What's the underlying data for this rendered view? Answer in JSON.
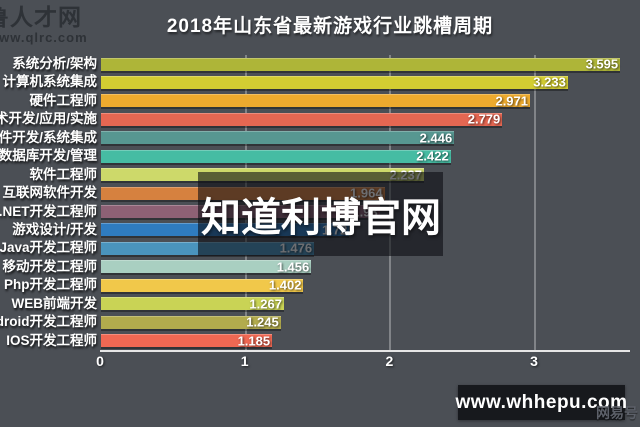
{
  "page": {
    "background": "#4b4f55"
  },
  "logo": {
    "line1": "鲁人才网",
    "line2": "www.qlrc.com"
  },
  "header": {
    "title": "2018年山东省最新游戏行业跳槽周期"
  },
  "watermark": {
    "text": "知道利博官网"
  },
  "footer": {
    "site": "www.whhepu.com",
    "corner_mark": "网易号"
  },
  "chart_data": {
    "type": "bar",
    "orientation": "horizontal",
    "title": "2018年山东省最新游戏行业跳槽周期",
    "xlabel": "",
    "ylabel": "",
    "xlim": [
      0,
      3.608
    ],
    "x_ticks": [
      0,
      1,
      2,
      3
    ],
    "grid": true,
    "legend": "none",
    "categories": [
      "系统分析/架构",
      "计算机系统集成",
      "硬件工程师",
      "术开发/应用/实施",
      "件开发/系统集成",
      "数据库开发/管理",
      "软件工程师",
      "互联网软件开发",
      ".NET开发工程师",
      "游戏设计/开发",
      "Java开发工程师",
      "移动开发工程师",
      "Php开发工程师",
      "WEB前端开发",
      "ndroid开发工程师",
      "IOS开发工程师"
    ],
    "values": [
      3.595,
      3.233,
      2.971,
      2.779,
      2.446,
      2.422,
      2.237,
      1.964,
      1.93,
      1.72,
      1.476,
      1.456,
      1.402,
      1.267,
      1.245,
      1.185
    ],
    "rows": [
      {
        "label": "系统分析/架构",
        "value": 3.595,
        "display": "3.595",
        "color": "#aeb538"
      },
      {
        "label": "计算机系统集成",
        "value": 3.233,
        "display": "3.233",
        "color": "#d3cd32"
      },
      {
        "label": "硬件工程师",
        "value": 2.971,
        "display": "2.971",
        "color": "#edaa2e"
      },
      {
        "label": "术开发/应用/实施",
        "value": 2.779,
        "display": "2.779",
        "color": "#e56752"
      },
      {
        "label": "件开发/系统集成",
        "value": 2.446,
        "display": "2.446",
        "color": "#579791"
      },
      {
        "label": "数据库开发/管理",
        "value": 2.422,
        "display": "2.422",
        "color": "#46bca3"
      },
      {
        "label": "软件工程师",
        "value": 2.237,
        "display": "2.237",
        "color": "#cdd96a"
      },
      {
        "label": "互联网软件开发",
        "value": 1.964,
        "display": "1.964",
        "color": "#d6813f"
      },
      {
        "label": ".NET开发工程师",
        "value": 1.93,
        "display": "1.93",
        "color": "#8e6175"
      },
      {
        "label": "游戏设计/开发",
        "value": 1.72,
        "display": "1.72",
        "color": "#2f7cc0"
      },
      {
        "label": "Java开发工程师",
        "value": 1.476,
        "display": "1.476",
        "color": "#4a94bd"
      },
      {
        "label": "移动开发工程师",
        "value": 1.456,
        "display": "1.456",
        "color": "#a9cfc1"
      },
      {
        "label": "Php开发工程师",
        "value": 1.402,
        "display": "1.402",
        "color": "#f1c84a"
      },
      {
        "label": "WEB前端开发",
        "value": 1.267,
        "display": "1.267",
        "color": "#c9d355"
      },
      {
        "label": "ndroid开发工程师",
        "value": 1.245,
        "display": "1.245",
        "color": "#b2ab4d"
      },
      {
        "label": "IOS开发工程师",
        "value": 1.185,
        "display": "1.185",
        "color": "#ef6853"
      }
    ]
  }
}
